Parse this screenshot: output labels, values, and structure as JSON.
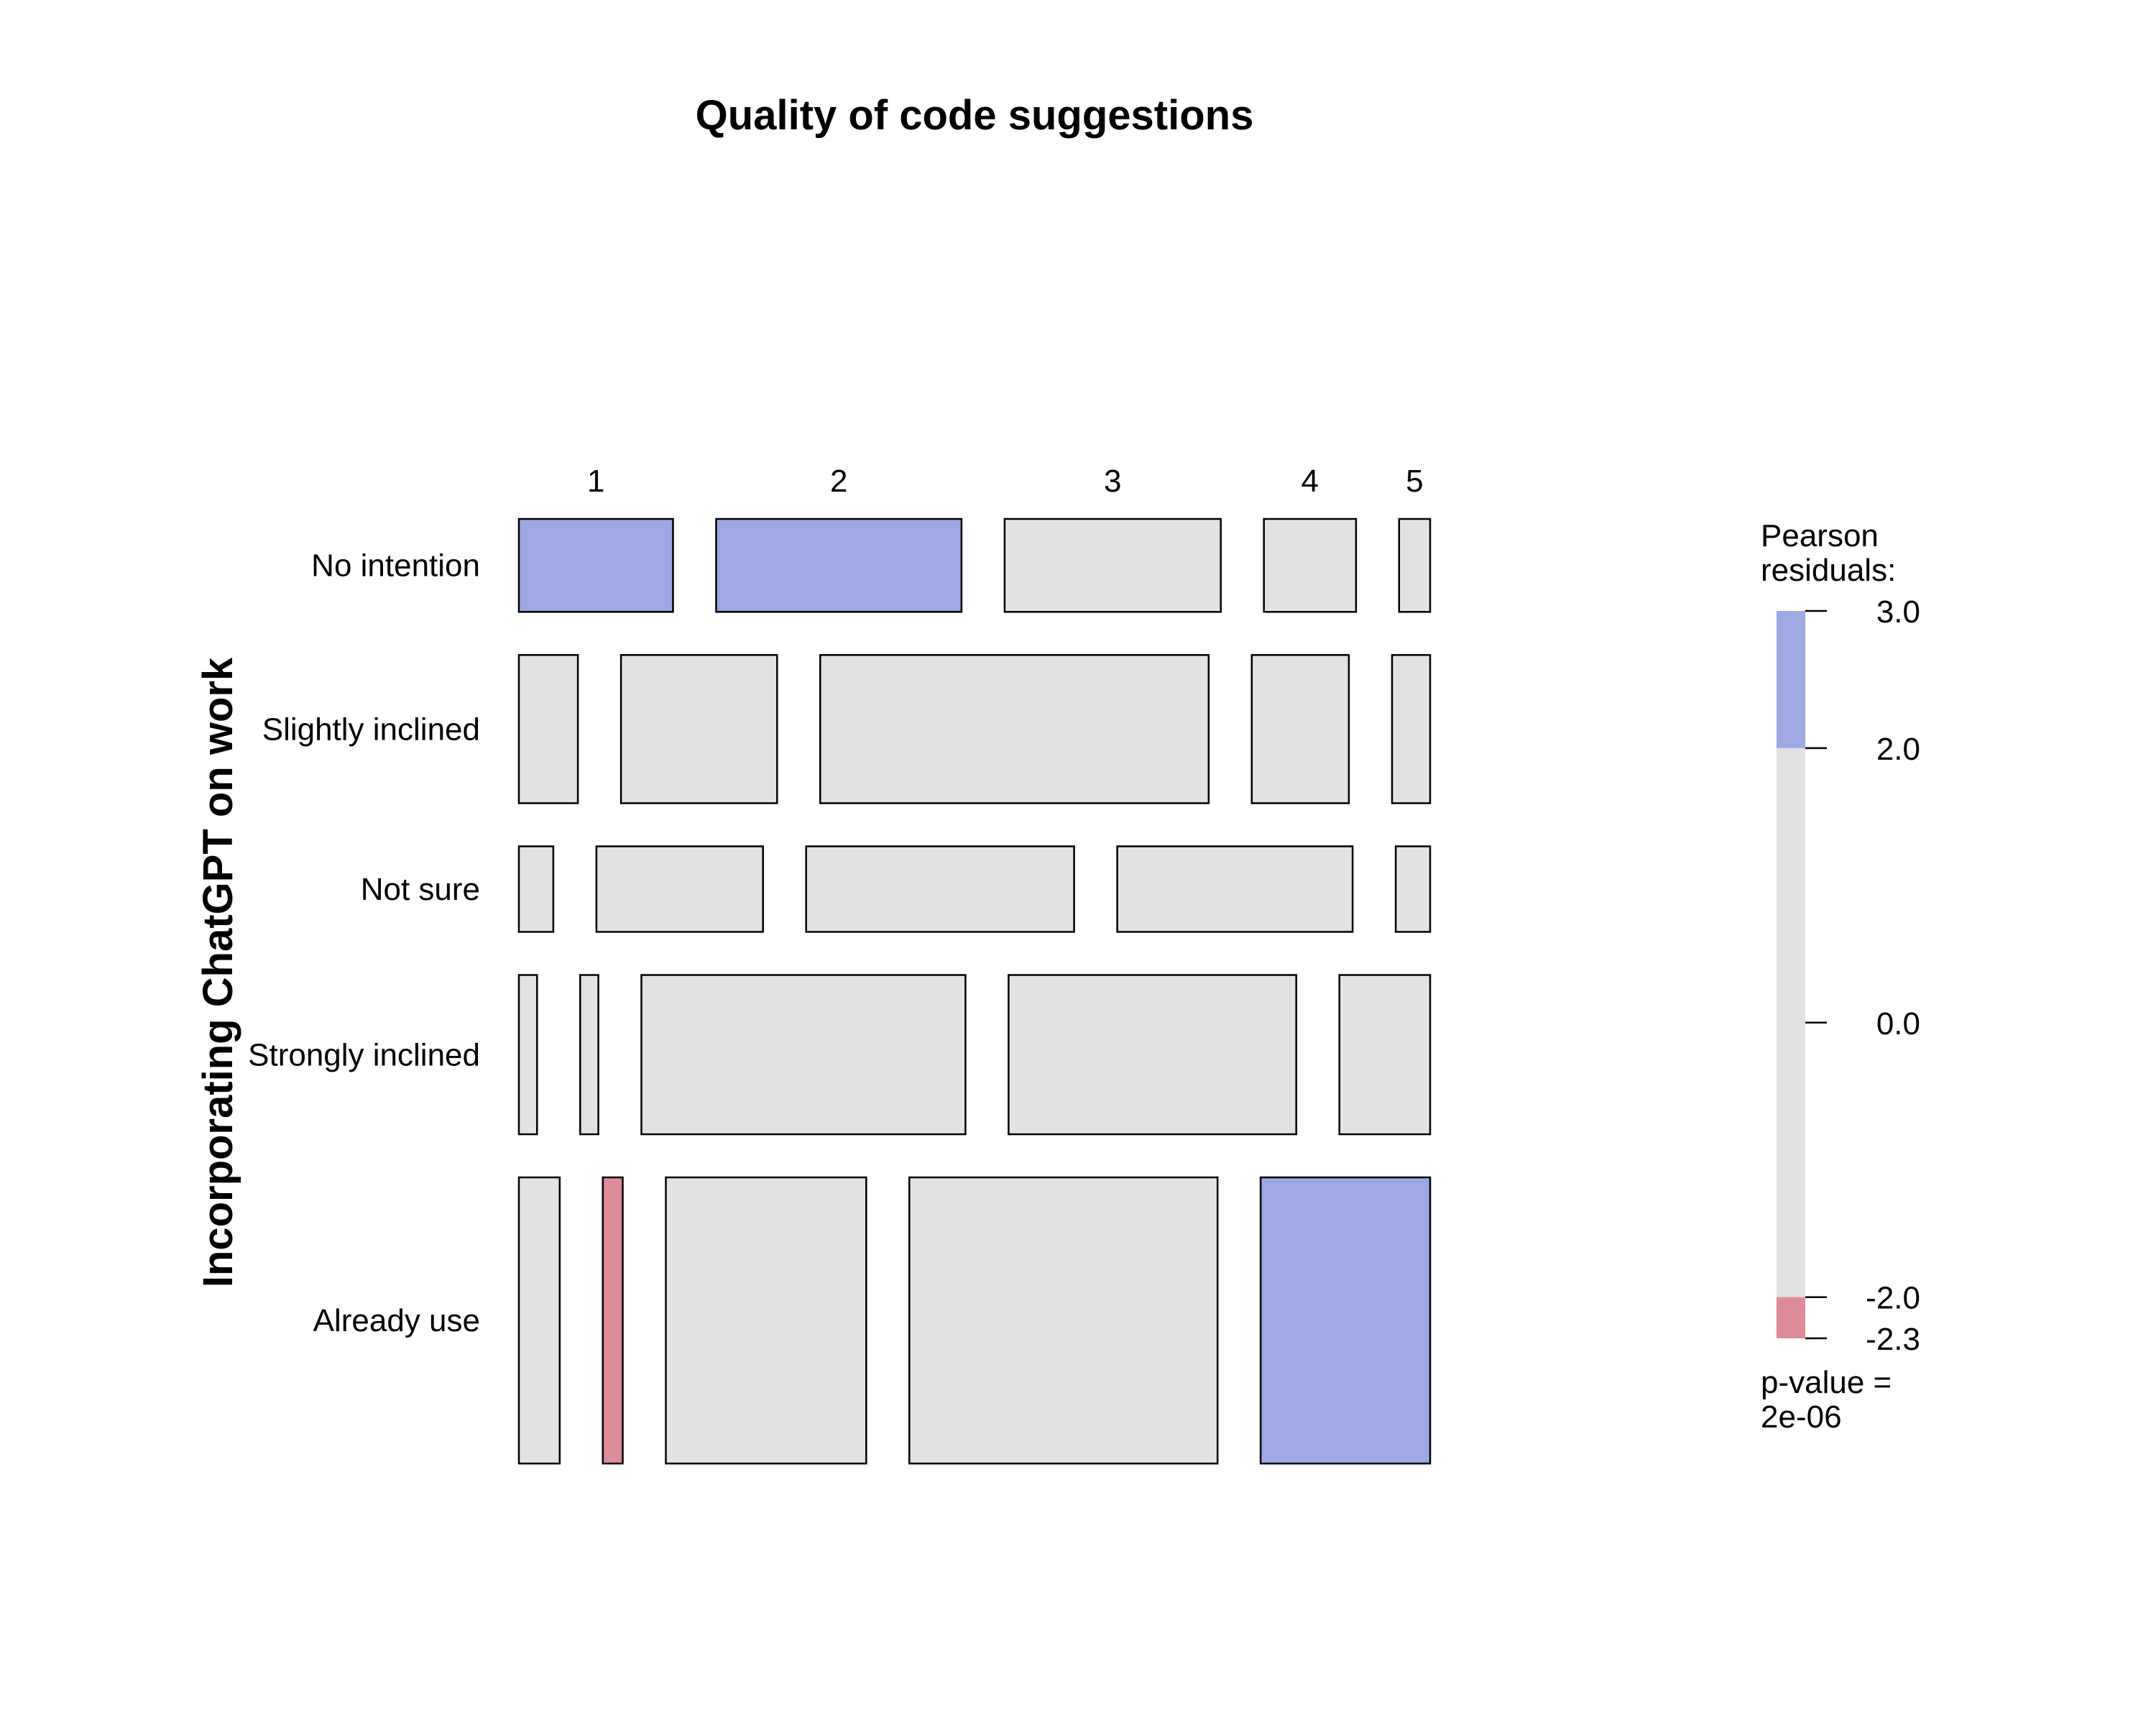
{
  "chart_data": {
    "type": "mosaic",
    "title": "Quality of code suggestions",
    "ylabel": "Incorporating ChatGPT on work",
    "columns": [
      "1",
      "2",
      "3",
      "4",
      "5"
    ],
    "rows": [
      {
        "name": "No intention",
        "proportion": 0.126,
        "col_shares": [
          0.169,
          0.269,
          0.237,
          0.101,
          0.034
        ],
        "residual_sign": [
          1,
          1,
          0,
          0,
          0
        ]
      },
      {
        "name": "Slightly inclined",
        "proportion": 0.201,
        "col_shares": [
          0.065,
          0.172,
          0.428,
          0.107,
          0.042
        ],
        "residual_sign": [
          0,
          0,
          0,
          0,
          0
        ]
      },
      {
        "name": "Not sure",
        "proportion": 0.116,
        "col_shares": [
          0.038,
          0.184,
          0.296,
          0.26,
          0.038
        ],
        "residual_sign": [
          0,
          0,
          0,
          0,
          0
        ]
      },
      {
        "name": "Strongly inclined",
        "proportion": 0.216,
        "col_shares": [
          0.02,
          0.02,
          0.357,
          0.317,
          0.1
        ],
        "residual_sign": [
          0,
          0,
          0,
          0,
          0
        ]
      },
      {
        "name": "Already use",
        "proportion": 0.388,
        "col_shares": [
          0.045,
          0.022,
          0.221,
          0.34,
          0.187
        ],
        "residual_sign": [
          0,
          -1,
          0,
          0,
          1
        ]
      }
    ],
    "legend": {
      "title_line1": "Pearson",
      "title_line2": "residuals:",
      "range": [
        -2.3,
        3.0
      ],
      "breaks": [
        {
          "value": 3.0,
          "label": "3.0"
        },
        {
          "value": 2.0,
          "label": "2.0"
        },
        {
          "value": 0.0,
          "label": "0.0"
        },
        {
          "value": -2.0,
          "label": "-2.0"
        },
        {
          "value": -2.3,
          "label": "-2.3"
        }
      ],
      "pvalue_line1": "p-value =",
      "pvalue_line2": "2e-06",
      "placement": "right"
    },
    "colors": {
      "positive": "#9ea8e2",
      "negative": "#de8b9a",
      "neutral": "#e2e2e2"
    }
  }
}
